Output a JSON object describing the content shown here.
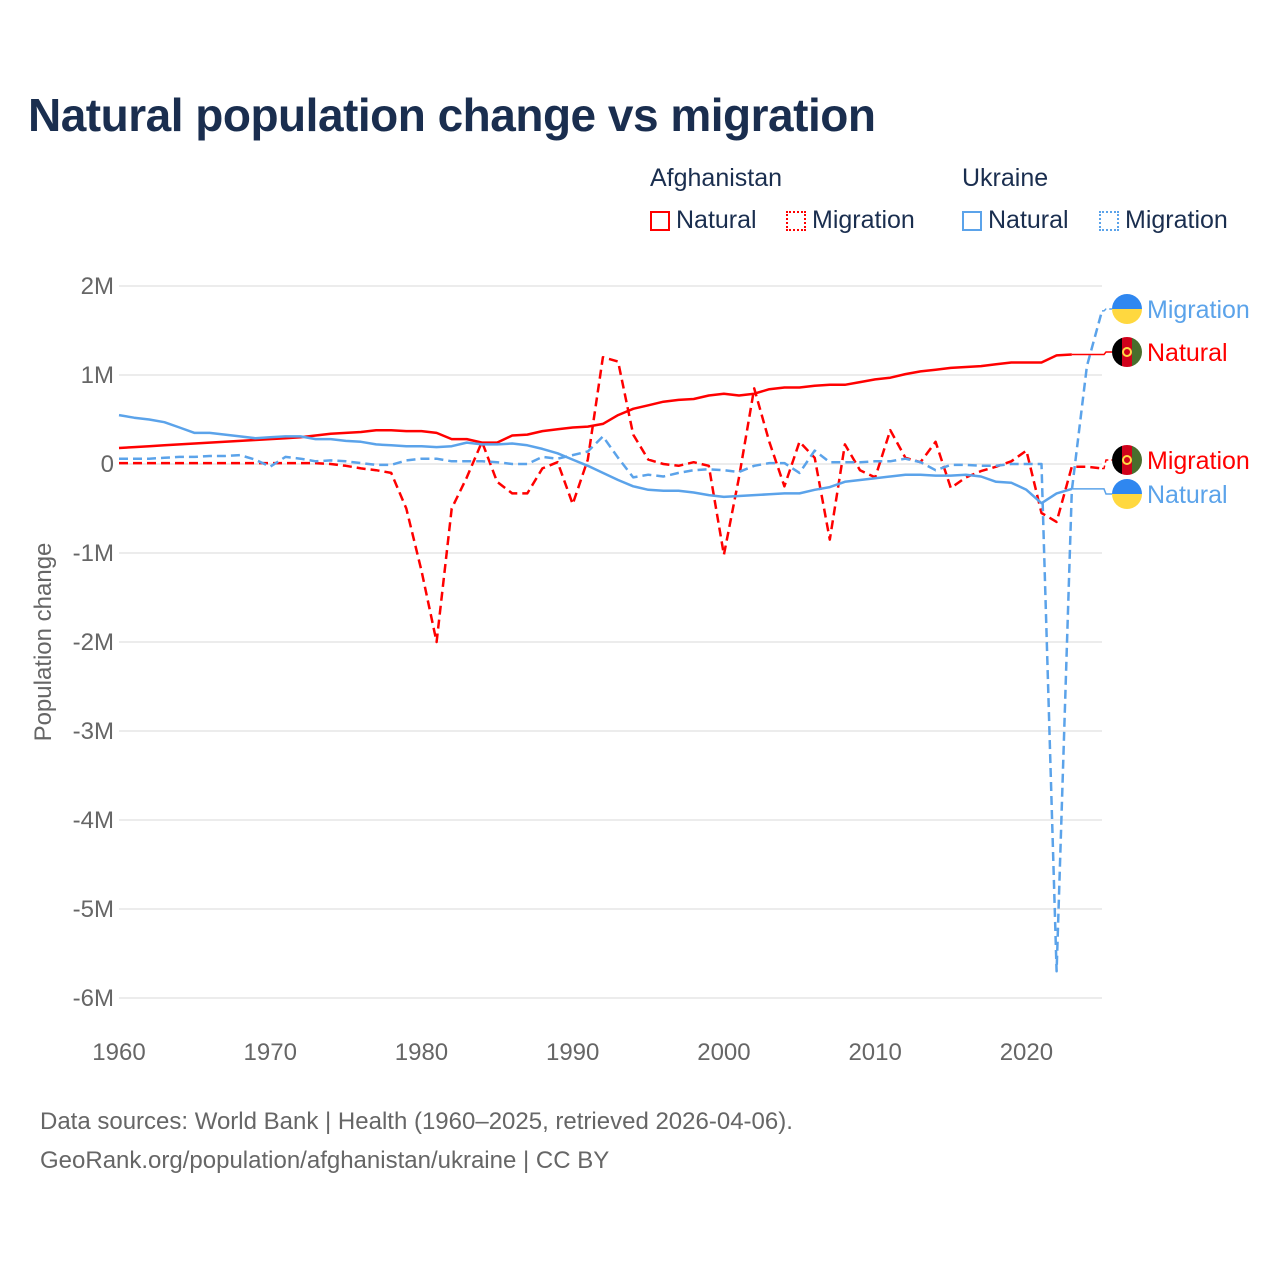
{
  "title": "Natural population change vs migration",
  "legend": {
    "groups": [
      {
        "name": "Afghanistan",
        "items": [
          "Natural",
          "Migration"
        ],
        "color": "#ff0000"
      },
      {
        "name": "Ukraine",
        "items": [
          "Natural",
          "Migration"
        ],
        "color": "#5ba3ea"
      }
    ]
  },
  "footer": {
    "line1": "Data sources: World Bank | Health (1960–2025, retrieved 2026-04-06).",
    "line2": "GeoRank.org/population/afghanistan/ukraine | CC BY"
  },
  "chart_data": {
    "type": "line",
    "title": "Natural population change vs migration",
    "xlabel": "",
    "ylabel": "Population change",
    "xlim": [
      1960,
      2025
    ],
    "ylim": [
      -6,
      2
    ],
    "y_unit": "millions",
    "x_ticks": [
      "1960",
      "1970",
      "1980",
      "1990",
      "2000",
      "2010",
      "2020"
    ],
    "y_ticks": [
      {
        "v": 2,
        "label": "2M"
      },
      {
        "v": 1,
        "label": "1M"
      },
      {
        "v": 0,
        "label": "0"
      },
      {
        "v": -1,
        "label": "-1M"
      },
      {
        "v": -2,
        "label": "-2M"
      },
      {
        "v": -3,
        "label": "-3M"
      },
      {
        "v": -4,
        "label": "-4M"
      },
      {
        "v": -5,
        "label": "-5M"
      },
      {
        "v": -6,
        "label": "-6M"
      }
    ],
    "grid": true,
    "legend_position": "top-right",
    "series": [
      {
        "name": "Afghanistan Natural",
        "country": "Afghanistan",
        "label": "Natural",
        "color": "#ff0000",
        "dashed": false,
        "start": 1960,
        "values": [
          0.18,
          0.19,
          0.2,
          0.21,
          0.22,
          0.23,
          0.24,
          0.25,
          0.26,
          0.27,
          0.28,
          0.29,
          0.3,
          0.32,
          0.34,
          0.35,
          0.36,
          0.38,
          0.38,
          0.37,
          0.37,
          0.35,
          0.28,
          0.28,
          0.24,
          0.24,
          0.32,
          0.33,
          0.37,
          0.39,
          0.41,
          0.42,
          0.45,
          0.55,
          0.62,
          0.66,
          0.7,
          0.72,
          0.73,
          0.77,
          0.79,
          0.77,
          0.79,
          0.84,
          0.86,
          0.86,
          0.88,
          0.89,
          0.89,
          0.92,
          0.95,
          0.97,
          1.01,
          1.04,
          1.06,
          1.08,
          1.09,
          1.1,
          1.12,
          1.14,
          1.14,
          1.14,
          1.22,
          1.23
        ]
      },
      {
        "name": "Afghanistan Migration",
        "country": "Afghanistan",
        "label": "Migration",
        "color": "#ff0000",
        "dashed": true,
        "start": 1960,
        "values": [
          0.01,
          0.01,
          0.01,
          0.01,
          0.01,
          0.01,
          0.01,
          0.01,
          0.01,
          0.01,
          0.01,
          0.01,
          0.01,
          0.01,
          0.0,
          -0.02,
          -0.05,
          -0.07,
          -0.1,
          -0.5,
          -1.2,
          -2.0,
          -0.5,
          -0.15,
          0.25,
          -0.2,
          -0.33,
          -0.33,
          -0.05,
          0.02,
          -0.45,
          0.05,
          1.2,
          1.15,
          0.33,
          0.05,
          0.0,
          -0.02,
          0.02,
          -0.02,
          -1.02,
          -0.15,
          0.85,
          0.25,
          -0.25,
          0.25,
          0.07,
          -0.85,
          0.22,
          -0.07,
          -0.15,
          0.38,
          0.07,
          0.02,
          0.25,
          -0.27,
          -0.15,
          -0.08,
          -0.03,
          0.03,
          0.15,
          -0.55,
          -0.65,
          -0.03,
          -0.03,
          -0.05
        ]
      },
      {
        "name": "Ukraine Natural",
        "country": "Ukraine",
        "label": "Natural",
        "color": "#5ba3ea",
        "dashed": false,
        "start": 1960,
        "values": [
          0.55,
          0.52,
          0.5,
          0.47,
          0.41,
          0.35,
          0.35,
          0.33,
          0.31,
          0.29,
          0.3,
          0.31,
          0.31,
          0.28,
          0.28,
          0.26,
          0.25,
          0.22,
          0.21,
          0.2,
          0.2,
          0.19,
          0.2,
          0.24,
          0.22,
          0.22,
          0.23,
          0.21,
          0.17,
          0.12,
          0.05,
          -0.02,
          -0.1,
          -0.18,
          -0.25,
          -0.29,
          -0.3,
          -0.3,
          -0.32,
          -0.35,
          -0.37,
          -0.36,
          -0.35,
          -0.34,
          -0.33,
          -0.33,
          -0.29,
          -0.26,
          -0.2,
          -0.18,
          -0.16,
          -0.14,
          -0.12,
          -0.12,
          -0.13,
          -0.13,
          -0.12,
          -0.14,
          -0.2,
          -0.21,
          -0.29,
          -0.44,
          -0.33,
          -0.28
        ]
      },
      {
        "name": "Ukraine Migration",
        "country": "Ukraine",
        "label": "Migration",
        "color": "#5ba3ea",
        "dashed": true,
        "start": 1960,
        "values": [
          0.06,
          0.06,
          0.06,
          0.07,
          0.08,
          0.08,
          0.09,
          0.09,
          0.1,
          0.05,
          -0.03,
          0.08,
          0.06,
          0.03,
          0.04,
          0.03,
          0.01,
          -0.01,
          -0.01,
          0.04,
          0.06,
          0.06,
          0.03,
          0.03,
          0.03,
          0.02,
          0.0,
          0.0,
          0.08,
          0.06,
          0.1,
          0.14,
          0.31,
          0.07,
          -0.15,
          -0.12,
          -0.14,
          -0.1,
          -0.07,
          -0.06,
          -0.07,
          -0.09,
          -0.02,
          0.01,
          0.01,
          -0.1,
          0.15,
          0.02,
          0.02,
          0.02,
          0.03,
          0.03,
          0.06,
          0.02,
          -0.07,
          -0.01,
          -0.01,
          -0.02,
          -0.02,
          0.0,
          0.0,
          0.0,
          -5.7,
          -0.3,
          1.1,
          1.72
        ]
      }
    ],
    "end_labels": [
      {
        "series": 3,
        "text": "Migration",
        "flag": "ukraine",
        "color": "#5ba3ea"
      },
      {
        "series": 0,
        "text": "Natural",
        "flag": "afghanistan",
        "color": "#ff0000"
      },
      {
        "series": 1,
        "text": "Migration",
        "flag": "afghanistan",
        "color": "#ff0000"
      },
      {
        "series": 2,
        "text": "Natural",
        "flag": "ukraine",
        "color": "#5ba3ea"
      }
    ]
  }
}
